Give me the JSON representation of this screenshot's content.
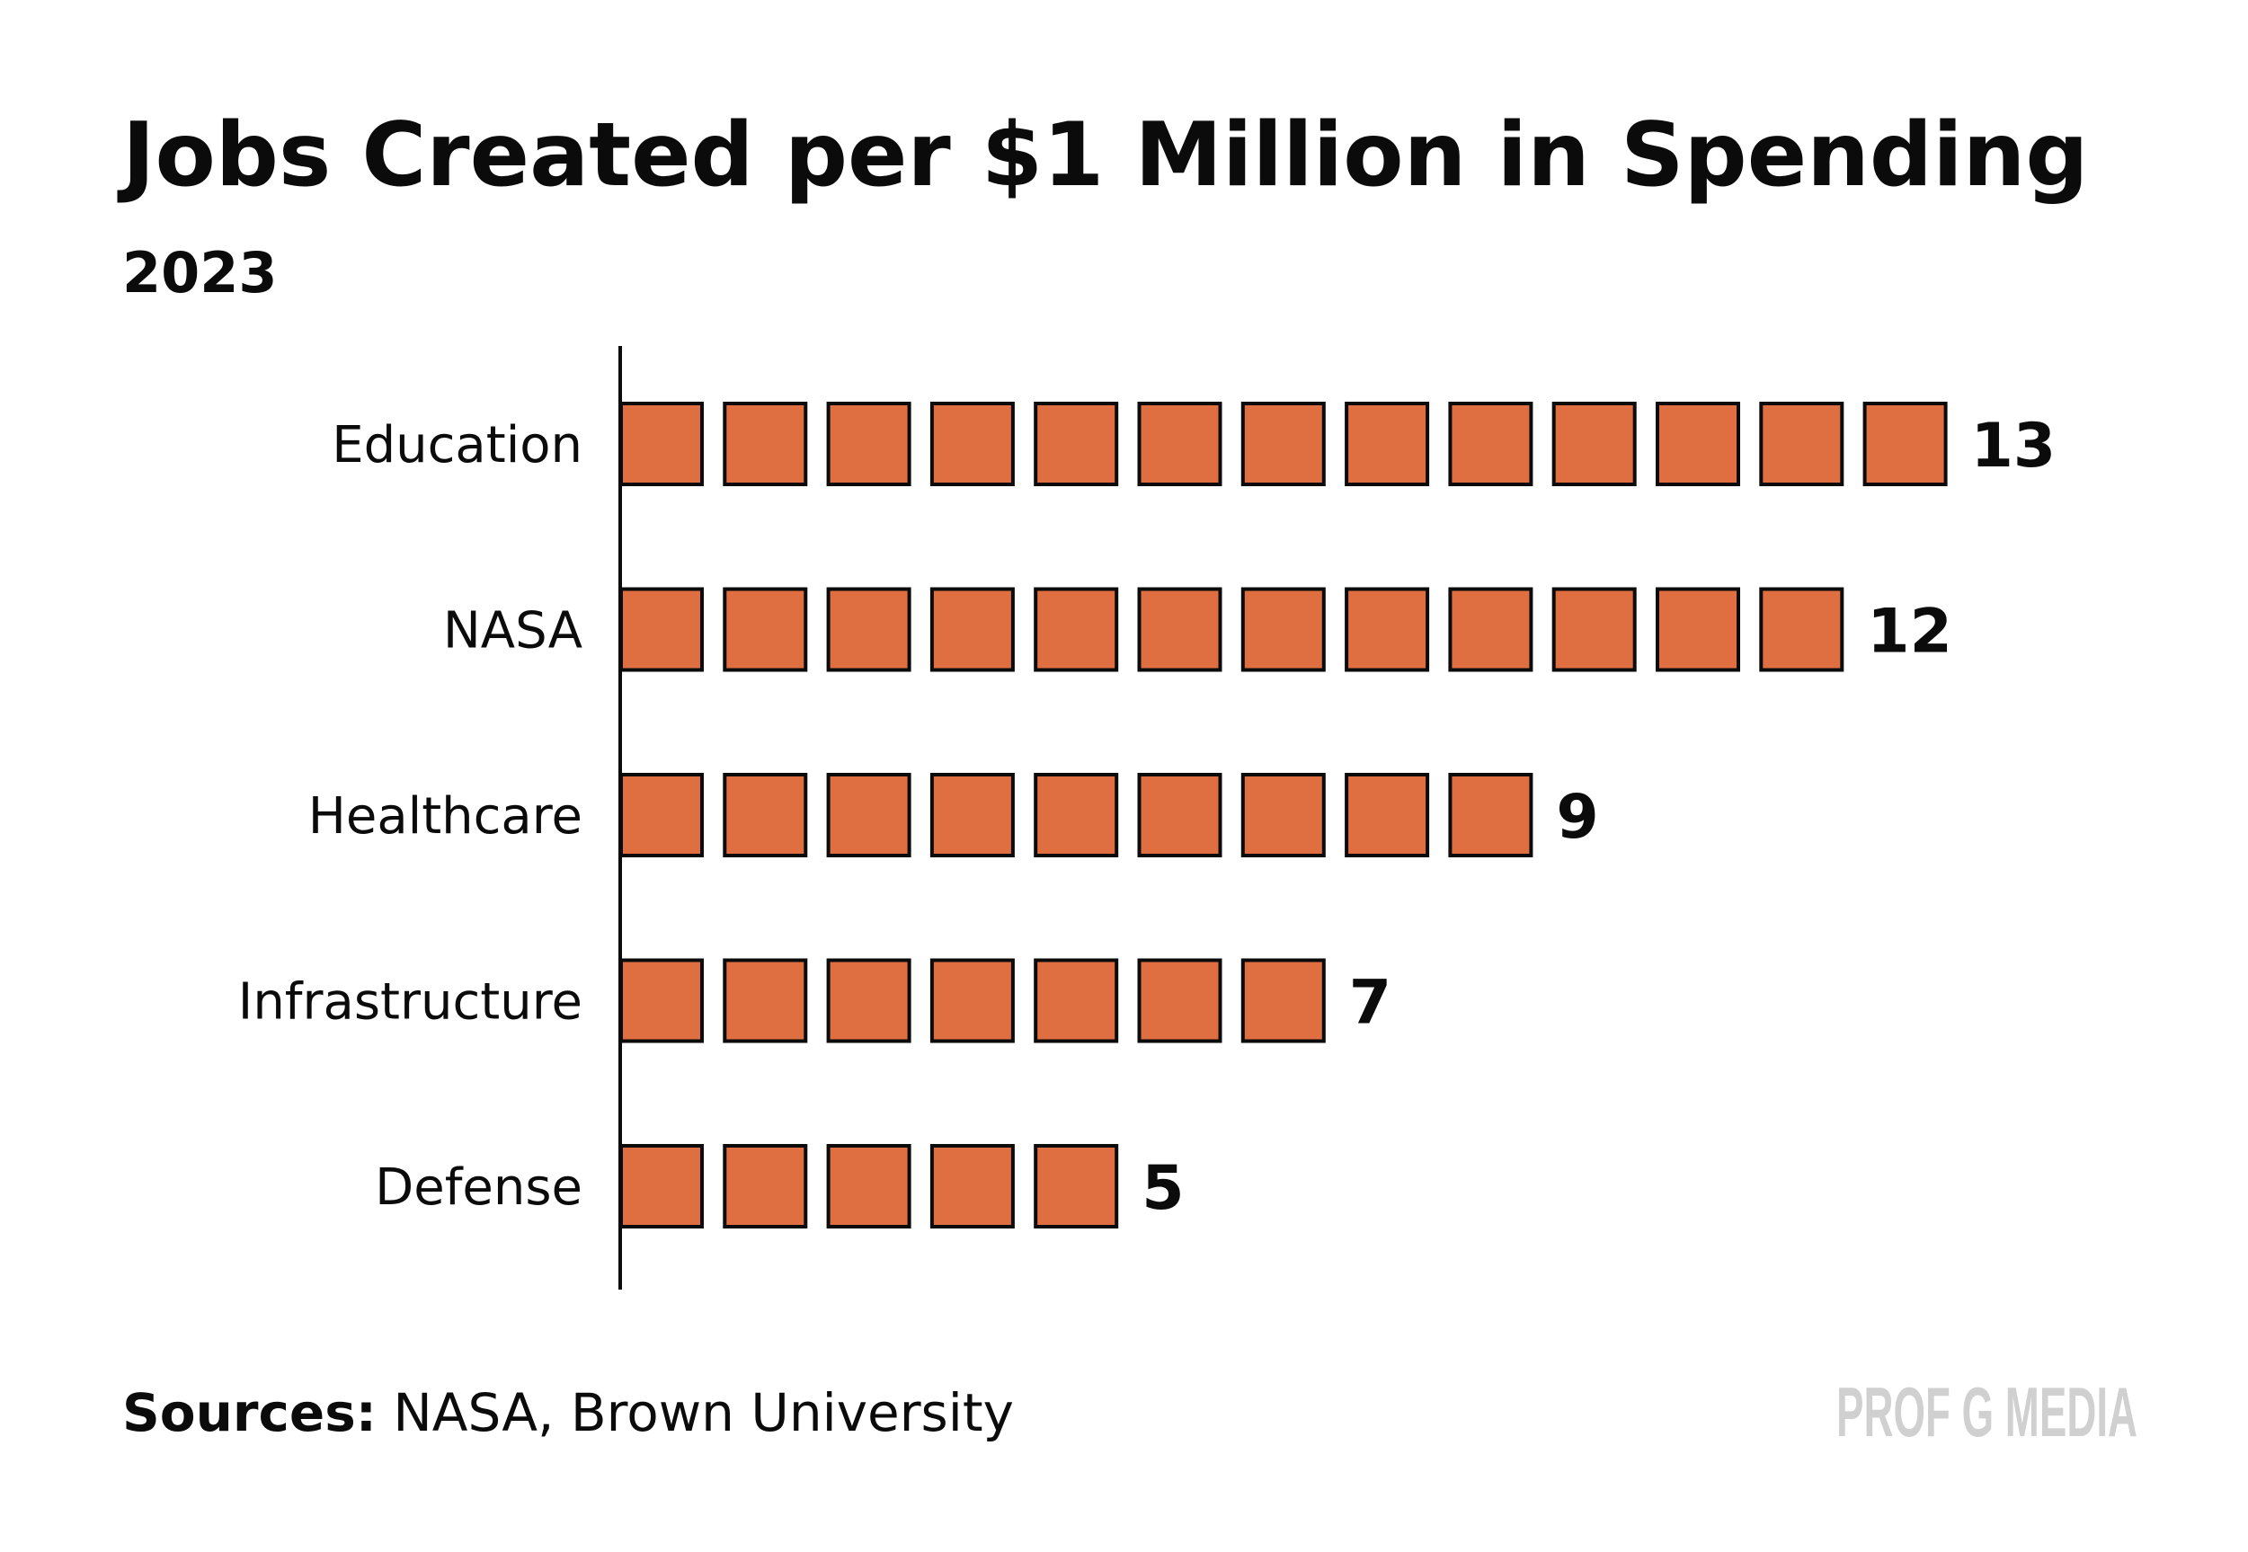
{
  "chart_data": {
    "type": "bar",
    "style": "pictogram-squares",
    "title": "Jobs Created per $1 Million in Spending",
    "subtitle": "2023",
    "categories": [
      "Education",
      "NASA",
      "Healthcare",
      "Infrastructure",
      "Defense"
    ],
    "values": [
      13,
      12,
      9,
      7,
      5
    ],
    "value_labels": [
      "13",
      "12",
      "9",
      "7",
      "5"
    ],
    "xlabel": "",
    "ylabel": "",
    "grid": false,
    "bar_color": "#DF6F40",
    "outline_color": "#0B0B0B"
  },
  "footer": {
    "sources_label": "Sources:",
    "sources_text": " NASA, Brown University",
    "logo_text": "PROF G MEDIA",
    "logo_color": "#D0D0D0"
  }
}
